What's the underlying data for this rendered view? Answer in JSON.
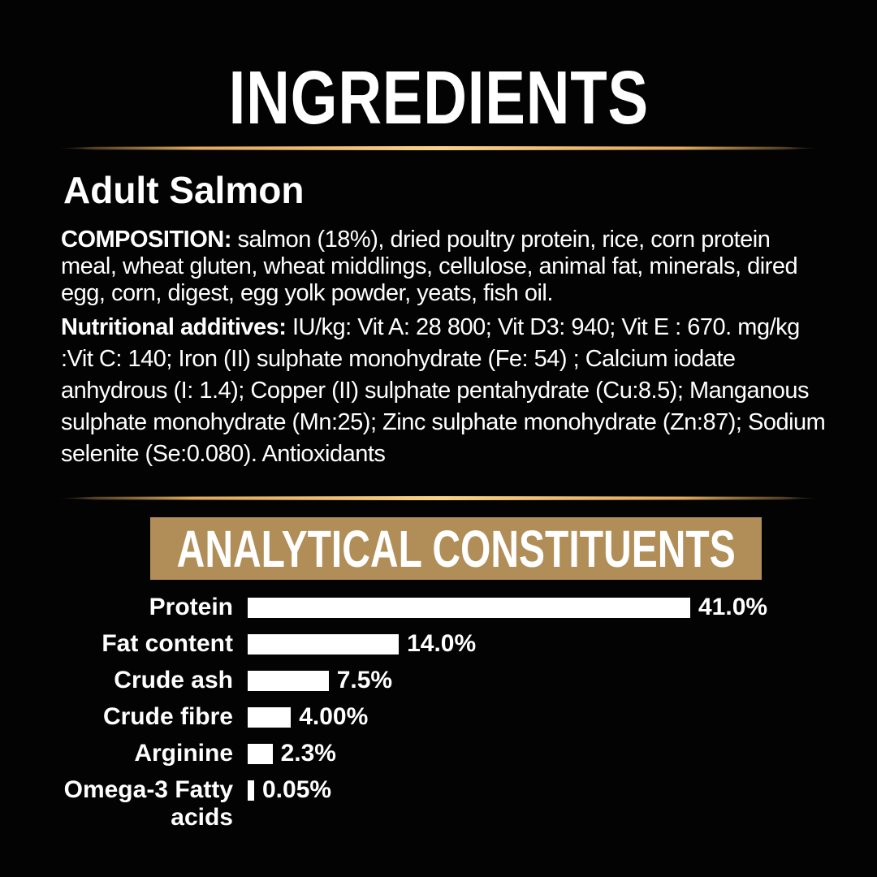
{
  "page": {
    "title": "INGREDIENTS",
    "product_name": "Adult Salmon",
    "composition": {
      "label": "COMPOSITION: ",
      "text": "salmon (18%), dried poultry protein, rice, corn protein meal, wheat gluten, wheat middlings, cellulose, animal fat, minerals, dired egg, corn, digest, egg yolk powder, yeats, fish oil."
    },
    "additives": {
      "label": "Nutritional additives: ",
      "text": "IU/kg: Vit A: 28 800; Vit D3: 940; Vit E : 670. mg/kg :Vit C: 140; Iron (II) sulphate monohydrate (Fe: 54) ; Calcium iodate anhydrous (I: 1.4); Copper (II) sulphate pentahydrate (Cu:8.5); Manganous sulphate monohydrate (Mn:25); Zinc sulphate monohydrate (Zn:87); Sodium selenite (Se:0.080). Antioxidants"
    },
    "section_title": "ANALYTICAL CONSTITUENTS"
  },
  "colors": {
    "background": "#000000",
    "text": "#ffffff",
    "banner_gold": "#b18e58",
    "divider_gold": "#f0c47a",
    "bar_fill": "#ffffff"
  },
  "chart_data": {
    "type": "bar",
    "orientation": "horizontal",
    "title": "ANALYTICAL CONSTITUENTS",
    "categories": [
      "Protein",
      "Fat content",
      "Crude ash",
      "Crude fibre",
      "Arginine",
      "Omega-3 Fatty acids"
    ],
    "values": [
      41.0,
      14.0,
      7.5,
      4.0,
      2.3,
      0.05
    ],
    "value_labels": [
      "41.0%",
      "14.0%",
      "7.5%",
      "4.00%",
      "2.3%",
      "0.05%"
    ],
    "unit": "%",
    "xlim": [
      0,
      41
    ],
    "bar_color": "#ffffff",
    "value_label_position": "right-of-bar",
    "grid": false,
    "legend": false
  }
}
